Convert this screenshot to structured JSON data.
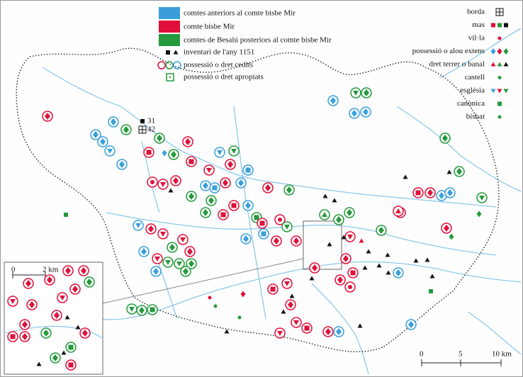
{
  "legend_left": [
    "comtes anteriors al comte bisbe Mir",
    "comte bisbe Mir",
    "comtes de Besalú posteriors al comte bisbe Mir",
    "inventari de l'any 1151",
    "possessió o dret cedits",
    "possessió o dret apropiats"
  ],
  "legend_right": [
    "borda",
    "mas",
    "vil·la",
    "possessió o alou extens",
    "dret terrer o banal",
    "castell",
    "església",
    "canònica",
    "bisbat"
  ],
  "map_labels": [
    "31",
    "42"
  ],
  "scale": {
    "labels": [
      "0",
      "5",
      "10 km"
    ]
  },
  "inset_scale": {
    "labels": [
      "0",
      "2 km"
    ]
  }
}
